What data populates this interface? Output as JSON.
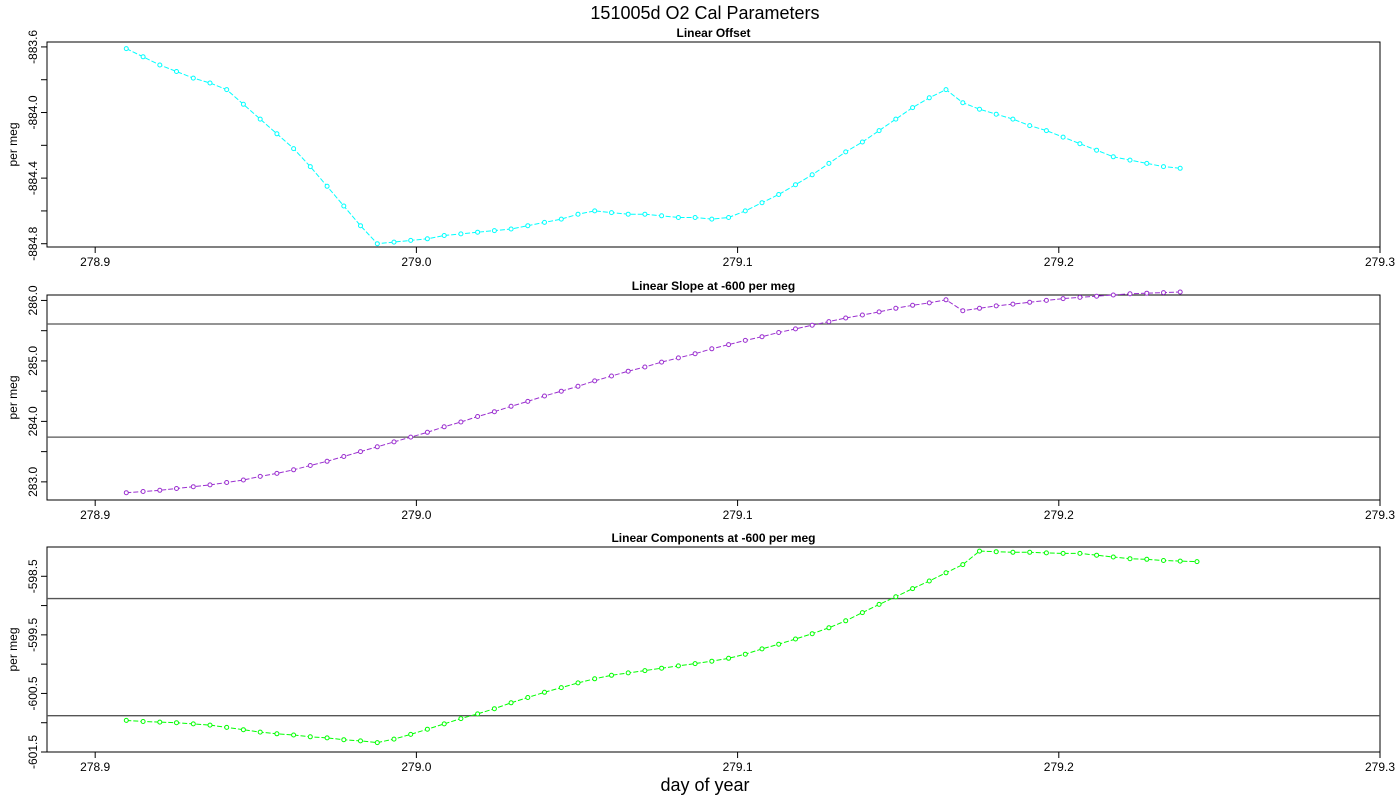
{
  "figure": {
    "title": "151005d   O2 Cal Parameters",
    "xlabel": "day of year"
  },
  "chart_data": [
    {
      "type": "line",
      "title": "Linear Offset",
      "ylabel": "per meg",
      "xlim": [
        278.885,
        279.3
      ],
      "ylim": [
        -884.82,
        -883.57
      ],
      "x_ticks": [
        "278.9",
        "279.0",
        "279.1",
        "279.2",
        "279.3"
      ],
      "y_ticks": [
        "-883.6",
        "-884.0",
        "-884.4",
        "-884.8"
      ],
      "y_minor_ticks": [
        -883.8,
        -884.2,
        -884.6
      ],
      "grid": false,
      "hlines": [],
      "color": "#00ffff",
      "x_start": 278.9097,
      "x_step": 0.005208,
      "values": [
        -883.61,
        -883.66,
        -883.71,
        -883.75,
        -883.79,
        -883.82,
        -883.86,
        -883.95,
        -884.04,
        -884.13,
        -884.22,
        -884.33,
        -884.45,
        -884.57,
        -884.69,
        -884.8,
        -884.79,
        -884.78,
        -884.77,
        -884.75,
        -884.74,
        -884.73,
        -884.72,
        -884.71,
        -884.69,
        -884.67,
        -884.65,
        -884.62,
        -884.6,
        -884.61,
        -884.62,
        -884.62,
        -884.63,
        -884.64,
        -884.64,
        -884.65,
        -884.64,
        -884.6,
        -884.55,
        -884.5,
        -884.44,
        -884.38,
        -884.31,
        -884.24,
        -884.18,
        -884.11,
        -884.04,
        -883.97,
        -883.91,
        -883.86,
        -883.94,
        -883.98,
        -884.01,
        -884.04,
        -884.08,
        -884.11,
        -884.15,
        -884.19,
        -884.23,
        -884.27,
        -884.29,
        -884.31,
        -884.33,
        -884.34
      ]
    },
    {
      "type": "line",
      "title": "Linear Slope at -600 per meg",
      "ylabel": "per meg",
      "xlim": [
        278.885,
        279.3
      ],
      "ylim": [
        282.7,
        286.09
      ],
      "x_ticks": [
        "278.9",
        "279.0",
        "279.1",
        "279.2",
        "279.3"
      ],
      "y_ticks": [
        "283.0",
        "284.0",
        "285.0",
        "286.0"
      ],
      "y_minor_ticks": [
        283.5,
        284.5,
        285.5
      ],
      "grid": false,
      "hlines": [
        283.74,
        285.61
      ],
      "color": "#9b30d0",
      "x_start": 278.9097,
      "x_step": 0.005208,
      "values": [
        282.82,
        282.84,
        282.86,
        282.89,
        282.92,
        282.95,
        282.99,
        283.03,
        283.09,
        283.14,
        283.2,
        283.27,
        283.34,
        283.42,
        283.5,
        283.58,
        283.66,
        283.74,
        283.82,
        283.91,
        283.99,
        284.08,
        284.16,
        284.25,
        284.33,
        284.42,
        284.5,
        284.58,
        284.67,
        284.75,
        284.83,
        284.9,
        284.98,
        285.05,
        285.12,
        285.2,
        285.27,
        285.34,
        285.4,
        285.47,
        285.53,
        285.59,
        285.65,
        285.71,
        285.76,
        285.81,
        285.87,
        285.92,
        285.96,
        286.01,
        285.83,
        285.87,
        285.91,
        285.94,
        285.97,
        286.0,
        286.03,
        286.05,
        286.07,
        286.09,
        286.11,
        286.12,
        286.13,
        286.14
      ]
    },
    {
      "type": "line",
      "title": "Linear Components at -600 per meg",
      "ylabel": "per meg",
      "xlim": [
        278.885,
        279.3
      ],
      "ylim": [
        -601.5,
        -598.0
      ],
      "x_ticks": [
        "278.9",
        "279.0",
        "279.1",
        "279.2",
        "279.3"
      ],
      "y_ticks": [
        "-598.5",
        "-599.5",
        "-600.5",
        "-601.5"
      ],
      "y_minor_ticks": [
        -599.0,
        -600.0,
        -601.0
      ],
      "grid": false,
      "hlines": [
        -598.88,
        -600.88
      ],
      "color": "#00ff00",
      "x_start": 278.9097,
      "x_step": 0.005208,
      "values": [
        -600.96,
        -600.98,
        -600.99,
        -601.0,
        -601.02,
        -601.04,
        -601.08,
        -601.12,
        -601.16,
        -601.19,
        -601.21,
        -601.24,
        -601.26,
        -601.29,
        -601.31,
        -601.34,
        -601.28,
        -601.2,
        -601.11,
        -601.02,
        -600.93,
        -600.85,
        -600.76,
        -600.66,
        -600.57,
        -600.48,
        -600.4,
        -600.32,
        -600.25,
        -600.19,
        -600.15,
        -600.11,
        -600.07,
        -600.03,
        -599.99,
        -599.95,
        -599.9,
        -599.83,
        -599.74,
        -599.66,
        -599.57,
        -599.48,
        -599.38,
        -599.26,
        -599.12,
        -598.98,
        -598.85,
        -598.71,
        -598.58,
        -598.44,
        -598.3,
        -598.07,
        -598.08,
        -598.09,
        -598.09,
        -598.1,
        -598.11,
        -598.11,
        -598.14,
        -598.17,
        -598.2,
        -598.21,
        -598.23,
        -598.24,
        -598.25
      ]
    }
  ]
}
